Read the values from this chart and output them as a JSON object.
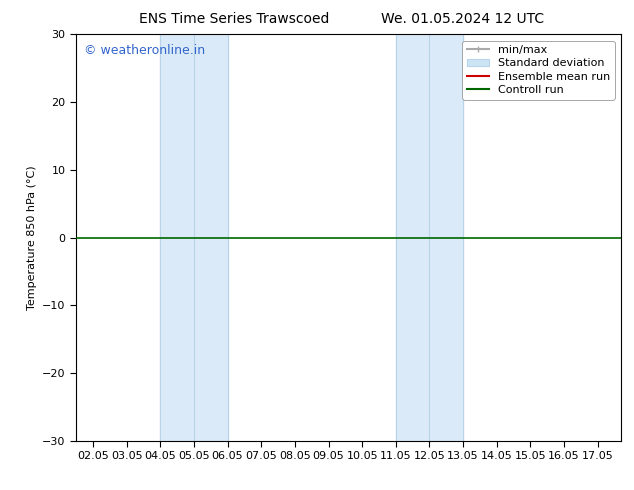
{
  "title_left": "ENS Time Series Trawscoed",
  "title_right": "We. 01.05.2024 12 UTC",
  "ylabel": "Temperature 850 hPa (°C)",
  "xlim_min": 1.5,
  "xlim_max": 17.7,
  "ylim_min": -30,
  "ylim_max": 30,
  "yticks": [
    -30,
    -20,
    -10,
    0,
    10,
    20,
    30
  ],
  "xtick_labels": [
    "02.05",
    "03.05",
    "04.05",
    "05.05",
    "06.05",
    "07.05",
    "08.05",
    "09.05",
    "10.05",
    "11.05",
    "12.05",
    "13.05",
    "14.05",
    "15.05",
    "16.05",
    "17.05"
  ],
  "xtick_positions": [
    2,
    3,
    4,
    5,
    6,
    7,
    8,
    9,
    10,
    11,
    12,
    13,
    14,
    15,
    16,
    17
  ],
  "shaded_bands": [
    {
      "x_start": 4.0,
      "x_end": 6.0
    },
    {
      "x_start": 11.0,
      "x_end": 13.0
    }
  ],
  "shaded_color": "#daeaf8",
  "vertical_lines_x": [
    4.0,
    5.0,
    6.0,
    11.0,
    12.0,
    13.0
  ],
  "vline_color": "#b8d4eb",
  "control_run_y": 0.0,
  "control_run_color": "#006600",
  "ensemble_mean_color": "#cc0000",
  "watermark_text": "© weatheronline.in",
  "watermark_color": "#3366cc",
  "legend_entries": [
    "min/max",
    "Standard deviation",
    "Ensemble mean run",
    "Controll run"
  ],
  "legend_minmax_color": "#aaaaaa",
  "legend_stddev_color": "#cde4f5",
  "legend_mean_color": "#cc0000",
  "legend_control_color": "#006600",
  "bg_color": "#ffffff",
  "plot_bg_color": "#ffffff",
  "border_color": "#000000",
  "font_size": 8,
  "title_font_size": 10,
  "watermark_font_size": 9
}
